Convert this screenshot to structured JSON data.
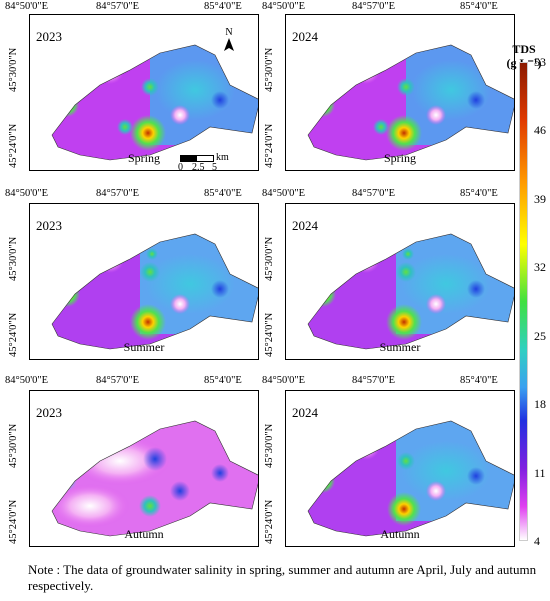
{
  "coords": {
    "lon": [
      "84°50'0\"E",
      "84°57'0\"E",
      "85°4'0\"E"
    ],
    "lat": [
      "45°30'0\"N",
      "45°24'0\"N"
    ]
  },
  "panels": [
    {
      "year": "2023",
      "season": "Spring"
    },
    {
      "year": "2024",
      "season": "Spring"
    },
    {
      "year": "2023",
      "season": "Summer"
    },
    {
      "year": "2024",
      "season": "Summer"
    },
    {
      "year": "2023",
      "season": "Autumn"
    },
    {
      "year": "2024",
      "season": "Autumn"
    }
  ],
  "north_label": "N",
  "scale": {
    "unit": "km",
    "ticks": [
      "0",
      "2.5",
      "5"
    ]
  },
  "colorbar": {
    "title_line1": "TDS",
    "title_line2": "(g L⁻¹)",
    "ticks": [
      "53",
      "46",
      "39",
      "32",
      "25",
      "18",
      "11",
      "4"
    ]
  },
  "note": "Note : The data of groundwater salinity in spring, summer and autumn are April, July and autumn respectively."
}
